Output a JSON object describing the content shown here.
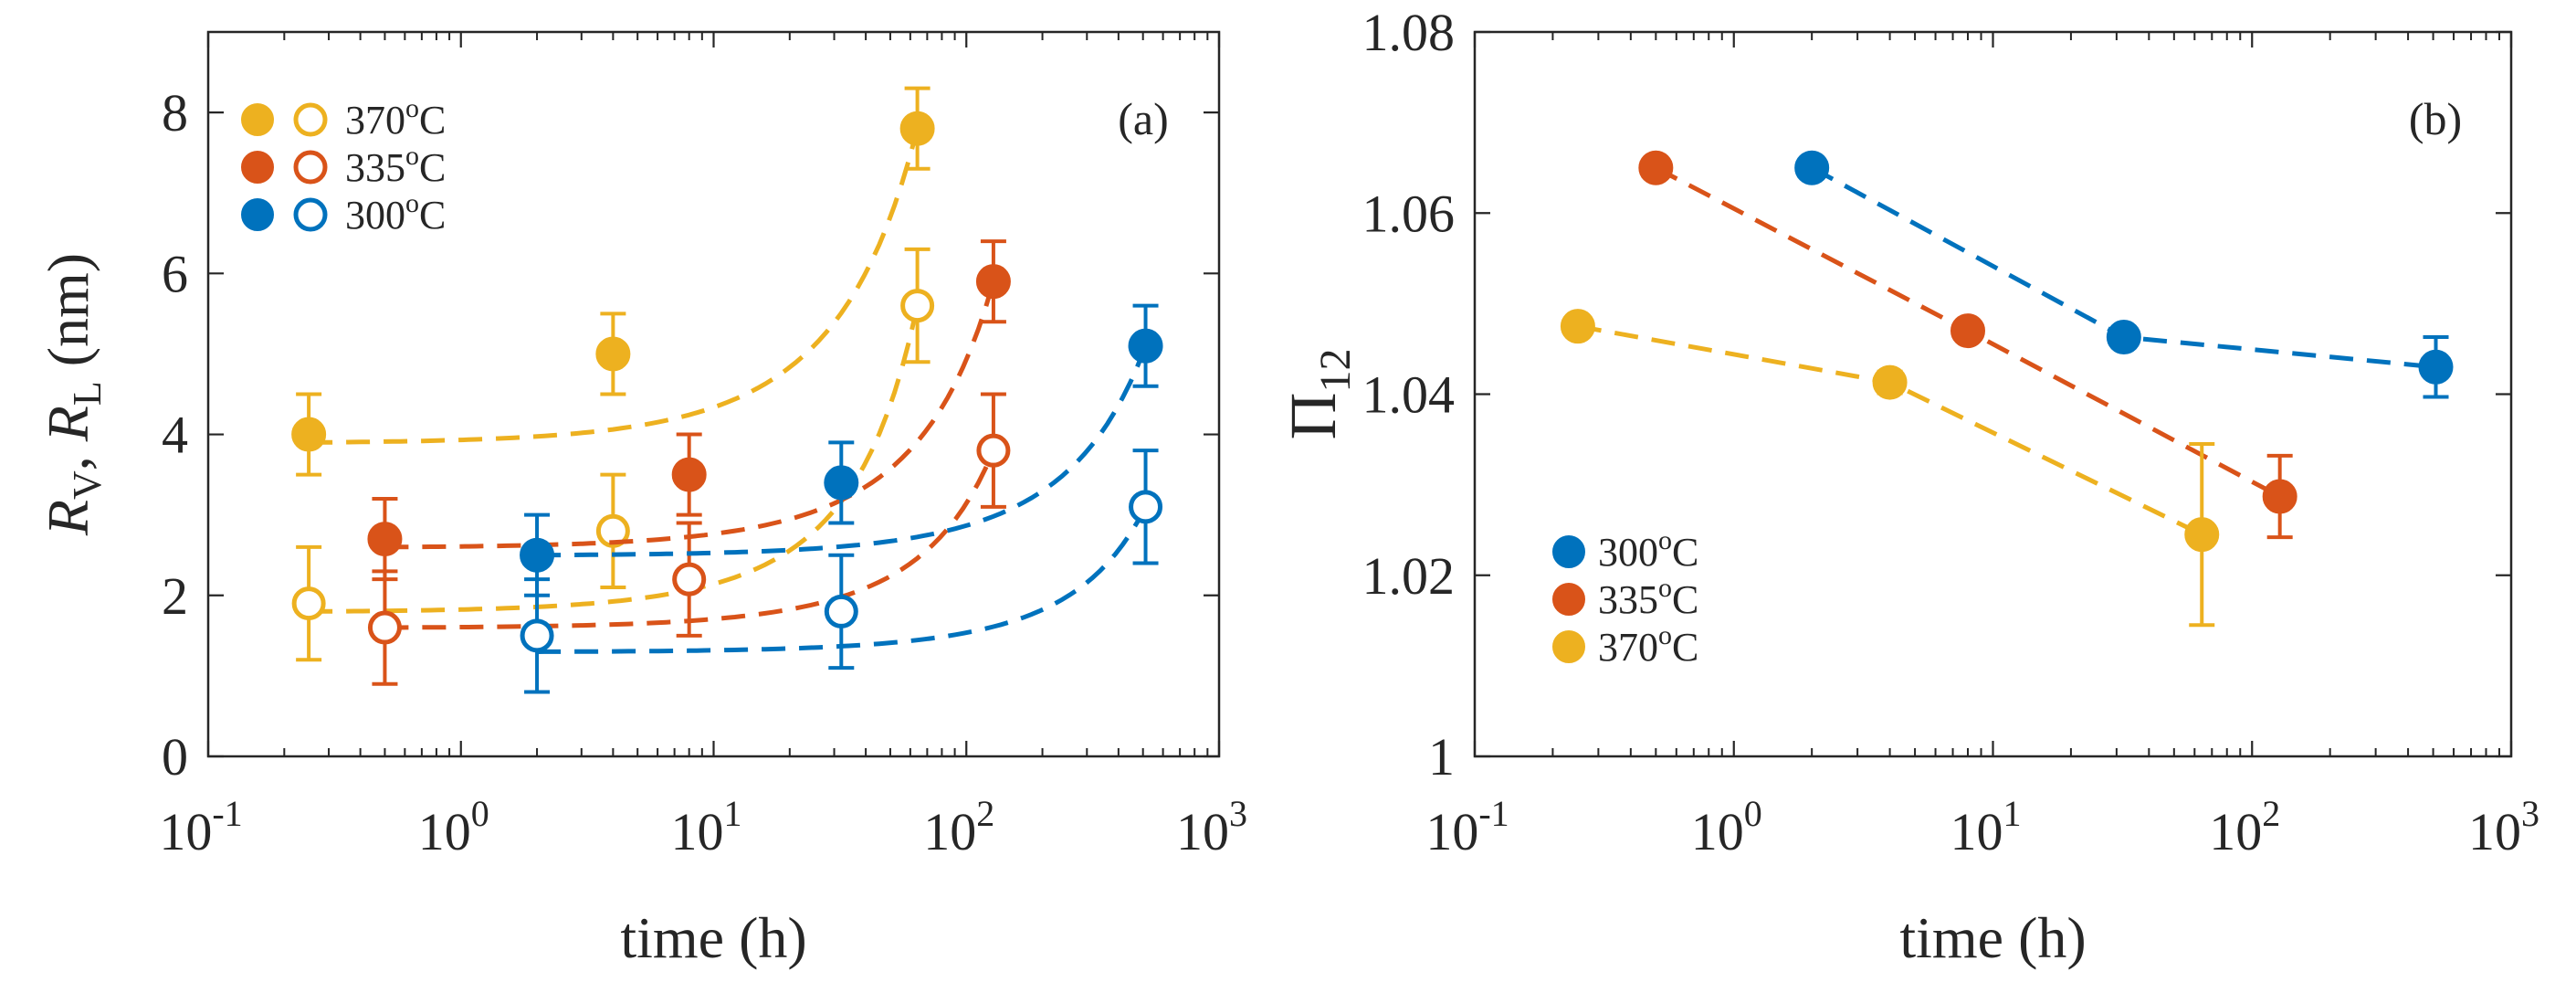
{
  "colors": {
    "c370": "#EDB120",
    "c335": "#D95319",
    "c300": "#0072BD",
    "axis": "#262626"
  },
  "chart_data": [
    {
      "type": "scatter",
      "panel_label": "(a)",
      "xlabel": "time (h)",
      "ylabel": {
        "r": "R",
        "sub_v": "V",
        "sep": ", ",
        "sub_l": "L",
        "unit": " (nm)"
      },
      "xscale": "log",
      "xlim": [
        0.1,
        1000
      ],
      "ylim": [
        0,
        9
      ],
      "xtick_values": [
        0.1,
        1,
        10,
        100,
        1000
      ],
      "xticks": [
        {
          "base": "10",
          "exp": "-1"
        },
        {
          "base": "10",
          "exp": "0"
        },
        {
          "base": "10",
          "exp": "1"
        },
        {
          "base": "10",
          "exp": "2"
        },
        {
          "base": "10",
          "exp": "3"
        }
      ],
      "ytick_values": [
        0,
        2,
        4,
        6,
        8
      ],
      "yticks": [
        "0",
        "2",
        "4",
        "6",
        "8"
      ],
      "legend": [
        {
          "label": "370",
          "deg": "o",
          "unit": "C",
          "color_key": "c370"
        },
        {
          "label": "335",
          "deg": "o",
          "unit": "C",
          "color_key": "c335"
        },
        {
          "label": "300",
          "deg": "o",
          "unit": "C",
          "color_key": "c300"
        }
      ],
      "series": [
        {
          "name": "370°C R_V (filled)",
          "color_key": "c370",
          "filled": true,
          "x": [
            0.25,
            4,
            64
          ],
          "y": [
            4.0,
            5.0,
            7.8
          ],
          "err": [
            0.5,
            0.5,
            0.5
          ],
          "fit_x": [
            0.25,
            64
          ],
          "fit_y": [
            3.9,
            7.8
          ]
        },
        {
          "name": "370°C R_L (open)",
          "color_key": "c370",
          "filled": false,
          "x": [
            0.25,
            4,
            64
          ],
          "y": [
            1.9,
            2.8,
            5.6
          ],
          "err": [
            0.7,
            0.7,
            0.7
          ],
          "fit_x": [
            0.25,
            64
          ],
          "fit_y": [
            1.8,
            5.6
          ]
        },
        {
          "name": "335°C R_V (filled)",
          "color_key": "c335",
          "filled": true,
          "x": [
            0.5,
            8,
            128
          ],
          "y": [
            2.7,
            3.5,
            5.9
          ],
          "err": [
            0.5,
            0.5,
            0.5
          ],
          "fit_x": [
            0.5,
            128
          ],
          "fit_y": [
            2.6,
            5.9
          ]
        },
        {
          "name": "335°C R_L (open)",
          "color_key": "c335",
          "filled": false,
          "x": [
            0.5,
            8,
            128
          ],
          "y": [
            1.6,
            2.2,
            3.8
          ],
          "err": [
            0.7,
            0.7,
            0.7
          ],
          "fit_x": [
            0.5,
            128
          ],
          "fit_y": [
            1.6,
            3.8
          ]
        },
        {
          "name": "300°C R_V (filled)",
          "color_key": "c300",
          "filled": true,
          "x": [
            2,
            32,
            512
          ],
          "y": [
            2.5,
            3.4,
            5.1
          ],
          "err": [
            0.5,
            0.5,
            0.5
          ],
          "fit_x": [
            2,
            512
          ],
          "fit_y": [
            2.5,
            5.1
          ]
        },
        {
          "name": "300°C R_L (open)",
          "color_key": "c300",
          "filled": false,
          "x": [
            2,
            32,
            512
          ],
          "y": [
            1.5,
            1.8,
            3.1
          ],
          "err": [
            0.7,
            0.7,
            0.7
          ],
          "fit_x": [
            2,
            512
          ],
          "fit_y": [
            1.3,
            3.1
          ]
        }
      ]
    },
    {
      "type": "line",
      "panel_label": "(b)",
      "xlabel": "time (h)",
      "ylabel": {
        "main": "Π",
        "sub": "12"
      },
      "xscale": "log",
      "xlim": [
        0.1,
        1000
      ],
      "ylim": [
        1,
        1.08
      ],
      "xtick_values": [
        0.1,
        1,
        10,
        100,
        1000
      ],
      "xticks": [
        {
          "base": "10",
          "exp": "-1"
        },
        {
          "base": "10",
          "exp": "0"
        },
        {
          "base": "10",
          "exp": "1"
        },
        {
          "base": "10",
          "exp": "2"
        },
        {
          "base": "10",
          "exp": "3"
        }
      ],
      "ytick_values": [
        1,
        1.02,
        1.04,
        1.06,
        1.08
      ],
      "yticks": [
        "1",
        "1.02",
        "1.04",
        "1.06",
        "1.08"
      ],
      "legend": [
        {
          "label": "300",
          "deg": "o",
          "unit": "C",
          "color_key": "c300"
        },
        {
          "label": "335",
          "deg": "o",
          "unit": "C",
          "color_key": "c335"
        },
        {
          "label": "370",
          "deg": "o",
          "unit": "C",
          "color_key": "c370"
        }
      ],
      "series": [
        {
          "name": "300°C",
          "color_key": "c300",
          "x": [
            2,
            32,
            512
          ],
          "y": [
            1.065,
            1.0463,
            1.043
          ],
          "err": [
            0,
            0,
            0.0033
          ]
        },
        {
          "name": "335°C",
          "color_key": "c335",
          "x": [
            0.5,
            8,
            128
          ],
          "y": [
            1.065,
            1.047,
            1.0287
          ],
          "err": [
            0,
            0,
            0.0045
          ]
        },
        {
          "name": "370°C",
          "color_key": "c370",
          "x": [
            0.25,
            4,
            64
          ],
          "y": [
            1.0475,
            1.0413,
            1.0245
          ],
          "err": [
            0,
            0.0012,
            0.01
          ]
        }
      ]
    }
  ]
}
